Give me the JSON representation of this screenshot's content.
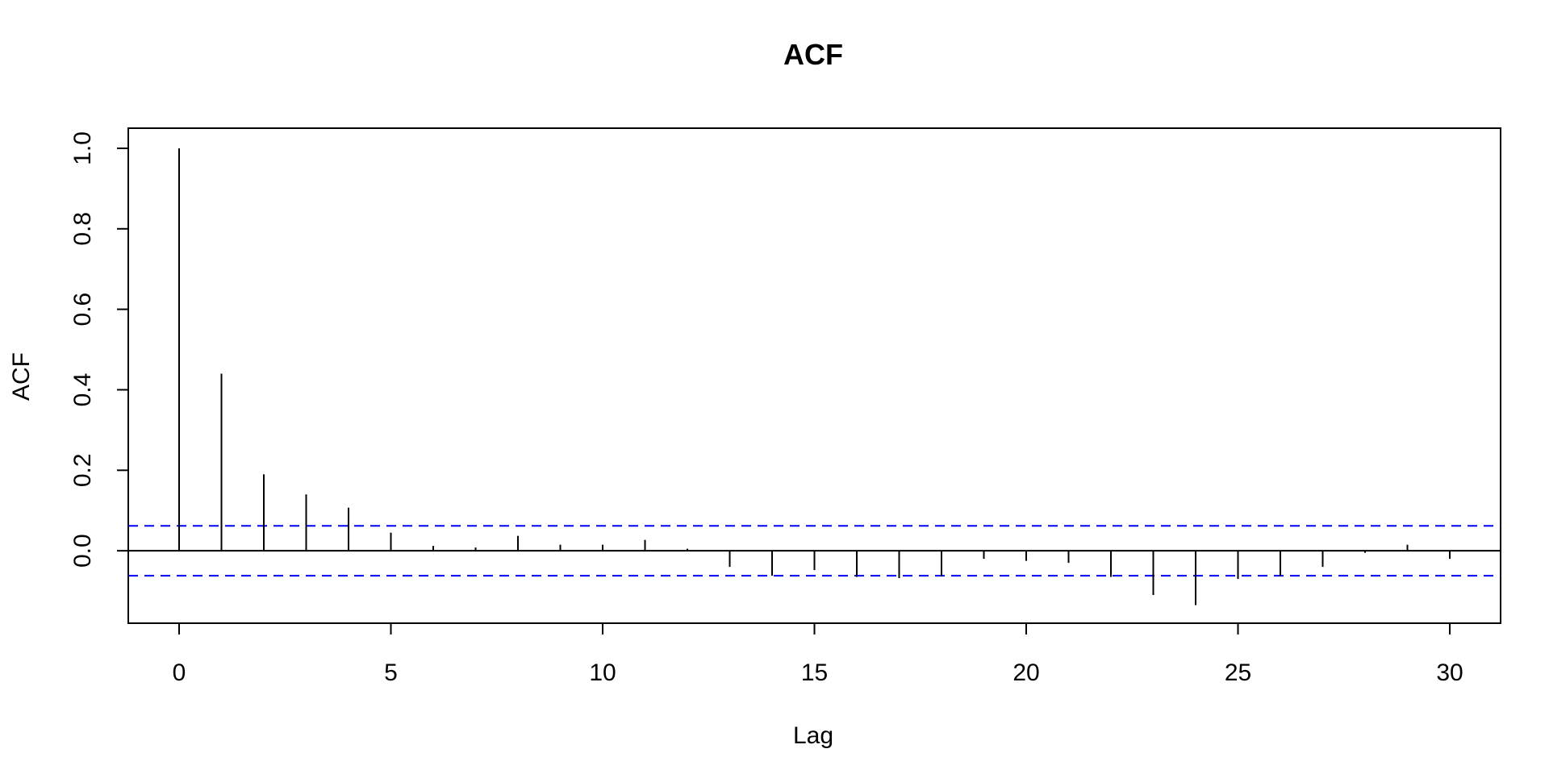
{
  "chart_data": {
    "type": "bar",
    "title": "ACF",
    "xlabel": "Lag",
    "ylabel": "ACF",
    "xlim": [
      -1.2,
      31.2
    ],
    "ylim": [
      -0.18,
      1.05
    ],
    "x_ticks": [
      0,
      5,
      10,
      15,
      20,
      25,
      30
    ],
    "x_tick_labels": [
      "0",
      "5",
      "10",
      "15",
      "20",
      "25",
      "30"
    ],
    "y_ticks": [
      0.0,
      0.2,
      0.4,
      0.6,
      0.8,
      1.0
    ],
    "y_tick_labels": [
      "0.0",
      "0.2",
      "0.4",
      "0.6",
      "0.8",
      "1.0"
    ],
    "lags": [
      0,
      1,
      2,
      3,
      4,
      5,
      6,
      7,
      8,
      9,
      10,
      11,
      12,
      13,
      14,
      15,
      16,
      17,
      18,
      19,
      20,
      21,
      22,
      23,
      24,
      25,
      26,
      27,
      28,
      29,
      30
    ],
    "values": [
      1.0,
      0.44,
      0.19,
      0.14,
      0.107,
      0.045,
      0.012,
      0.008,
      0.037,
      0.015,
      0.015,
      0.027,
      0.005,
      -0.04,
      -0.062,
      -0.048,
      -0.065,
      -0.068,
      -0.063,
      -0.02,
      -0.025,
      -0.03,
      -0.065,
      -0.11,
      -0.135,
      -0.07,
      -0.063,
      -0.04,
      -0.005,
      0.015,
      -0.02
    ],
    "confidence_bound": 0.062,
    "colors": {
      "bars": "#000000",
      "confidence": "#0000ff",
      "zero_line": "#000000"
    }
  }
}
